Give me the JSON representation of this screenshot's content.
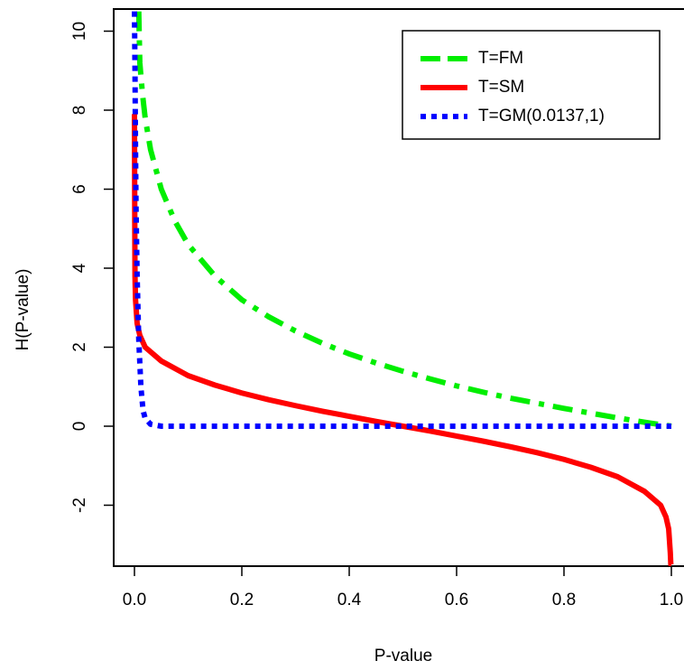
{
  "chart_data": {
    "type": "line",
    "xlabel": "P-value",
    "ylabel": "H(P-value)",
    "xlim": [
      0,
      1
    ],
    "ylim": [
      -3.5,
      10.5
    ],
    "xticks": [
      0,
      0.2,
      0.4,
      0.6,
      0.8,
      1.0
    ],
    "xtick_labels": [
      "0.0",
      "0.2",
      "0.4",
      "0.6",
      "0.8",
      "1.0"
    ],
    "yticks": [
      -2,
      0,
      2,
      4,
      6,
      8,
      10
    ],
    "ytick_labels": [
      "-2",
      "0",
      "2",
      "4",
      "6",
      "8",
      "10"
    ],
    "grid": false,
    "legend_position": "top-right",
    "series": [
      {
        "name": "T=FM",
        "color": "#00ee00",
        "style": "dashdot",
        "x": [
          0.008,
          0.01,
          0.015,
          0.02,
          0.03,
          0.05,
          0.075,
          0.1,
          0.15,
          0.2,
          0.25,
          0.3,
          0.35,
          0.4,
          0.45,
          0.5,
          0.55,
          0.6,
          0.65,
          0.7,
          0.75,
          0.8,
          0.85,
          0.9,
          0.95,
          0.99,
          1.0
        ],
        "y": [
          10.5,
          9.2,
          8.4,
          7.8,
          7.0,
          6.0,
          5.2,
          4.6,
          3.8,
          3.2,
          2.77,
          2.41,
          2.1,
          1.83,
          1.6,
          1.39,
          1.2,
          1.02,
          0.86,
          0.71,
          0.58,
          0.45,
          0.33,
          0.21,
          0.1,
          0.02,
          0.0
        ]
      },
      {
        "name": "T=SM",
        "color": "#ff0000",
        "style": "solid",
        "x": [
          0.0,
          0.0005,
          0.001,
          0.002,
          0.005,
          0.01,
          0.02,
          0.05,
          0.1,
          0.15,
          0.2,
          0.25,
          0.3,
          0.35,
          0.4,
          0.45,
          0.5,
          0.55,
          0.6,
          0.65,
          0.7,
          0.75,
          0.8,
          0.85,
          0.9,
          0.95,
          0.98,
          0.99,
          0.995,
          0.998,
          0.999,
          1.0
        ],
        "y": [
          7.9,
          5.5,
          3.8,
          3.2,
          2.6,
          2.3,
          2.0,
          1.65,
          1.28,
          1.04,
          0.84,
          0.67,
          0.52,
          0.38,
          0.25,
          0.12,
          0.0,
          -0.12,
          -0.25,
          -0.38,
          -0.52,
          -0.67,
          -0.84,
          -1.04,
          -1.28,
          -1.65,
          -2.0,
          -2.3,
          -2.6,
          -3.2,
          -3.5,
          -3.5
        ]
      },
      {
        "name": "T=GM(0.0137,1)",
        "color": "#0000ff",
        "style": "dotted",
        "x": [
          0.0,
          0.001,
          0.002,
          0.003,
          0.005,
          0.008,
          0.012,
          0.016,
          0.02,
          0.03,
          0.05,
          0.1,
          0.2,
          0.4,
          0.6,
          0.8,
          1.0
        ],
        "y": [
          10.5,
          9.0,
          7.0,
          5.5,
          3.8,
          2.2,
          1.0,
          0.4,
          0.2,
          0.05,
          0.0,
          0.0,
          0.0,
          0.0,
          0.0,
          0.0,
          0.0
        ]
      }
    ]
  }
}
